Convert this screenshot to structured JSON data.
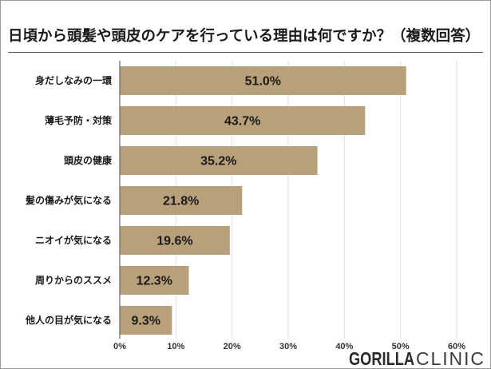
{
  "colors": {
    "bar": "#b8a07b",
    "text": "#1a1a1a",
    "grid": "#dedede",
    "axis": "#666666"
  },
  "logo": {
    "bold_part": "GORILLA",
    "light_part": "CLINIC"
  },
  "chart_data": {
    "type": "bar",
    "orientation": "horizontal",
    "title": "日頃から頭髪や頭皮のケアを行っている理由は何ですか？（複数回答）",
    "categories": [
      "身だしなみの一環",
      "薄毛予防・対策",
      "頭皮の健康",
      "髪の傷みが気になる",
      "ニオイが気になる",
      "周りからのススメ",
      "他人の目が気になる"
    ],
    "values": [
      51.0,
      43.7,
      35.2,
      21.8,
      19.6,
      12.3,
      9.3
    ],
    "value_labels": [
      "51.0%",
      "43.7%",
      "35.2%",
      "21.8%",
      "19.6%",
      "12.3%",
      "9.3%"
    ],
    "xlim": [
      0,
      60
    ],
    "xticks": [
      0,
      10,
      20,
      30,
      40,
      50,
      60
    ],
    "xtick_labels": [
      "0%",
      "10%",
      "20%",
      "30%",
      "40%",
      "50%",
      "60%"
    ],
    "grid": true
  }
}
